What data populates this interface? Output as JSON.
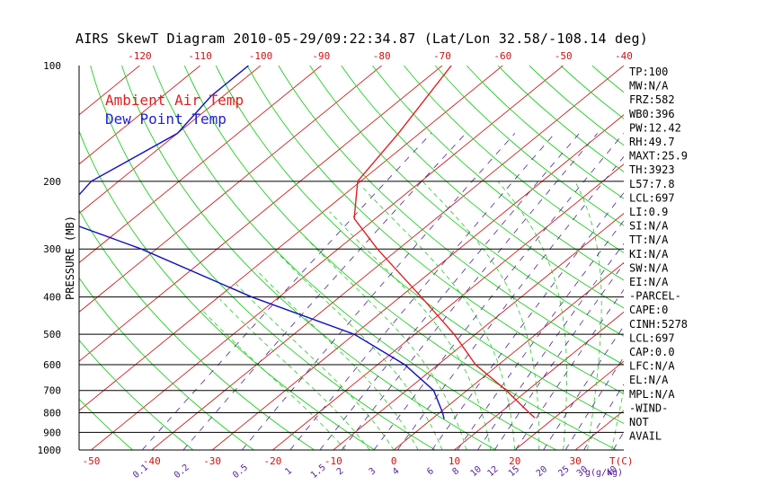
{
  "title": "AIRS SkewT Diagram 2010-05-29/09:22:34.87 (Lat/Lon 32.58/-108.14 deg)",
  "legend": [
    {
      "label": "Ambient Air Temp",
      "color": "#dd2222"
    },
    {
      "label": "Dew Point Temp",
      "color": "#2222cc"
    }
  ],
  "colors": {
    "temperature_line": "#dd2222",
    "dewpoint_line": "#1010c0",
    "isotherm": "#cc2222",
    "dry_adiabat": "#22cc22",
    "moist_adiabat": "#22cc22",
    "mixing_ratio": "#4b2a8a",
    "isobar": "#000000",
    "axis_label": "#cc1111",
    "mixing_label": "#552299"
  },
  "chart_data": {
    "type": "line",
    "subtype": "skew-t log-p",
    "ylabel": "PRESSURE (MB)",
    "xlabel_right": "T(C)",
    "mixing_ratio_unit": "g(g/kg)",
    "yscale": "log",
    "ylim": [
      1000,
      100
    ],
    "xlim_bottom": [
      -52,
      38
    ],
    "xlim_top": [
      -130,
      -40
    ],
    "pressure_ticks": [
      100,
      200,
      300,
      400,
      500,
      600,
      700,
      800,
      900,
      1000
    ],
    "top_temp_ticks": [
      -120,
      -110,
      -100,
      -90,
      -80,
      -70,
      -60,
      -50,
      -40
    ],
    "bottom_temp_ticks": [
      -50,
      -40,
      -30,
      -20,
      -10,
      0,
      10,
      20,
      30
    ],
    "mixing_ratio_ticks": [
      "0.1",
      "0.2",
      "0.5",
      "1",
      "1.5",
      "2",
      "3",
      "4",
      "6",
      "8",
      "10",
      "12",
      "15",
      "20",
      "25",
      "30",
      "40"
    ],
    "series": [
      {
        "name": "Ambient Air Temp",
        "points": [
          {
            "p": 100,
            "t": -68.5
          },
          {
            "p": 150,
            "t": -63.5
          },
          {
            "p": 200,
            "t": -60.5
          },
          {
            "p": 250,
            "t": -53.5
          },
          {
            "p": 300,
            "t": -43.5
          },
          {
            "p": 400,
            "t": -26.5
          },
          {
            "p": 500,
            "t": -13.5
          },
          {
            "p": 600,
            "t": -3.8
          },
          {
            "p": 700,
            "t": 6.5
          },
          {
            "p": 800,
            "t": 14.8
          },
          {
            "p": 825,
            "t": 16.8
          }
        ]
      },
      {
        "name": "Dew Point Temp",
        "points": [
          {
            "p": 100,
            "t": -102.0
          },
          {
            "p": 120,
            "t": -102.0
          },
          {
            "p": 150,
            "t": -100.0
          },
          {
            "p": 200,
            "t": -104.5
          },
          {
            "p": 250,
            "t": -102.5
          },
          {
            "p": 300,
            "t": -82.5
          },
          {
            "p": 400,
            "t": -54.5
          },
          {
            "p": 500,
            "t": -30.0
          },
          {
            "p": 600,
            "t": -15.5
          },
          {
            "p": 700,
            "t": -5.5
          },
          {
            "p": 800,
            "t": 0.5
          },
          {
            "p": 830,
            "t": 2.0
          }
        ]
      }
    ]
  },
  "indices": [
    "TP:100",
    "MW:N/A",
    "FRZ:582",
    "WB0:396",
    "PW:12.42",
    "RH:49.7",
    "MAXT:25.9",
    "TH:3923",
    "L57:7.8",
    "LCL:697",
    "LI:0.9",
    "SI:N/A",
    "TT:N/A",
    "KI:N/A",
    "SW:N/A",
    "EI:N/A",
    "-PARCEL-",
    "CAPE:0",
    "CINH:5278",
    "LCL:697",
    "CAP:0.0",
    "LFC:N/A",
    "EL:N/A",
    "MPL:N/A",
    "-WIND-",
    "NOT",
    "AVAIL"
  ]
}
